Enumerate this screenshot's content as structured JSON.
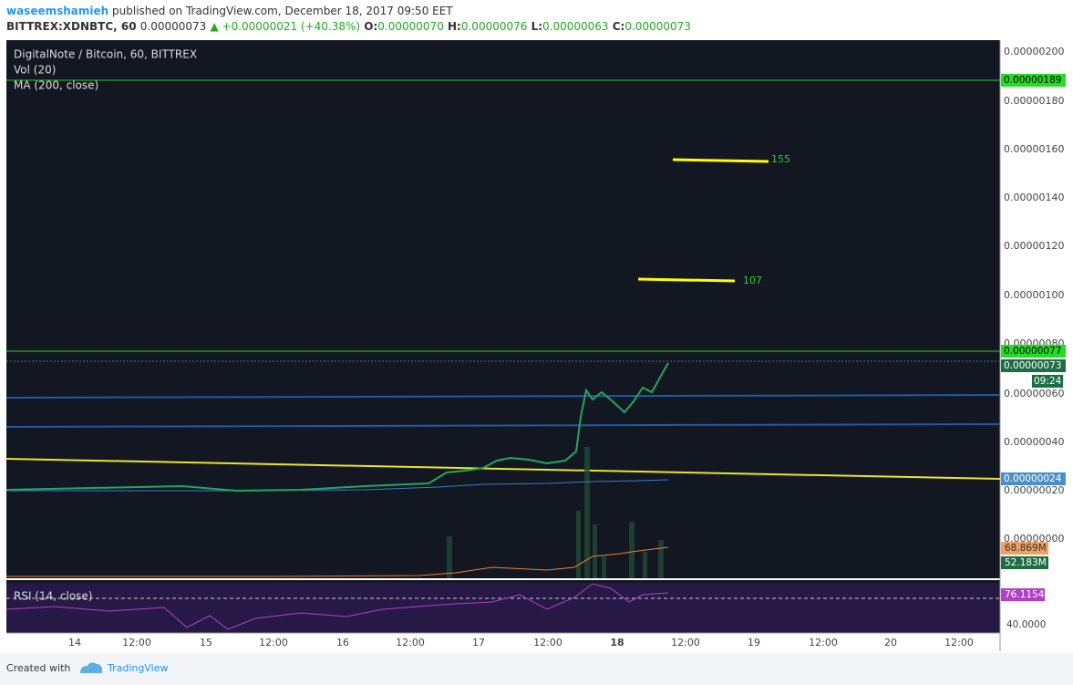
{
  "header": {
    "publisher": "waseemshamieh",
    "published": "published on TradingView.com, December 18, 2017 09:50 EET",
    "symbol": "BITTREX:XDNBTC, 60",
    "last": "0.00000073",
    "change": "▲ +0.00000021 (+40.38%)",
    "ohlc": [
      {
        "key": "O:",
        "value": "0.00000070"
      },
      {
        "key": "H:",
        "value": "0.00000076"
      },
      {
        "key": "L:",
        "value": "0.00000063"
      },
      {
        "key": "C:",
        "value": "0.00000073"
      }
    ]
  },
  "legend": [
    "DigitalNote / Bitcoin, 60, BITTREX",
    "Vol (20)",
    "MA (200, close)"
  ],
  "annotations": [
    "155",
    "107"
  ],
  "price_axis": [
    "0.00000200",
    "0.00000180",
    "0.00000160",
    "0.00000140",
    "0.00000120",
    "0.00000100",
    "0.00000080",
    "0.00000060",
    "0.00000040",
    "0.00000020",
    "0.00000000"
  ],
  "price_tags": [
    "0.00000189",
    "0.00000077",
    "0.00000073",
    "09:24",
    "0.00000024",
    "68.869M",
    "52.183M"
  ],
  "rsi": {
    "label": "RSI (14, close)",
    "tags": [
      "76.1154",
      "40.0000"
    ]
  },
  "time_axis": [
    "14",
    "12:00",
    "15",
    "12:00",
    "16",
    "12:00",
    "17",
    "12:00",
    "18",
    "12:00",
    "19",
    "12:00",
    "20",
    "12:00"
  ],
  "footer": {
    "created": "Created with",
    "brand": "TradingView"
  }
}
